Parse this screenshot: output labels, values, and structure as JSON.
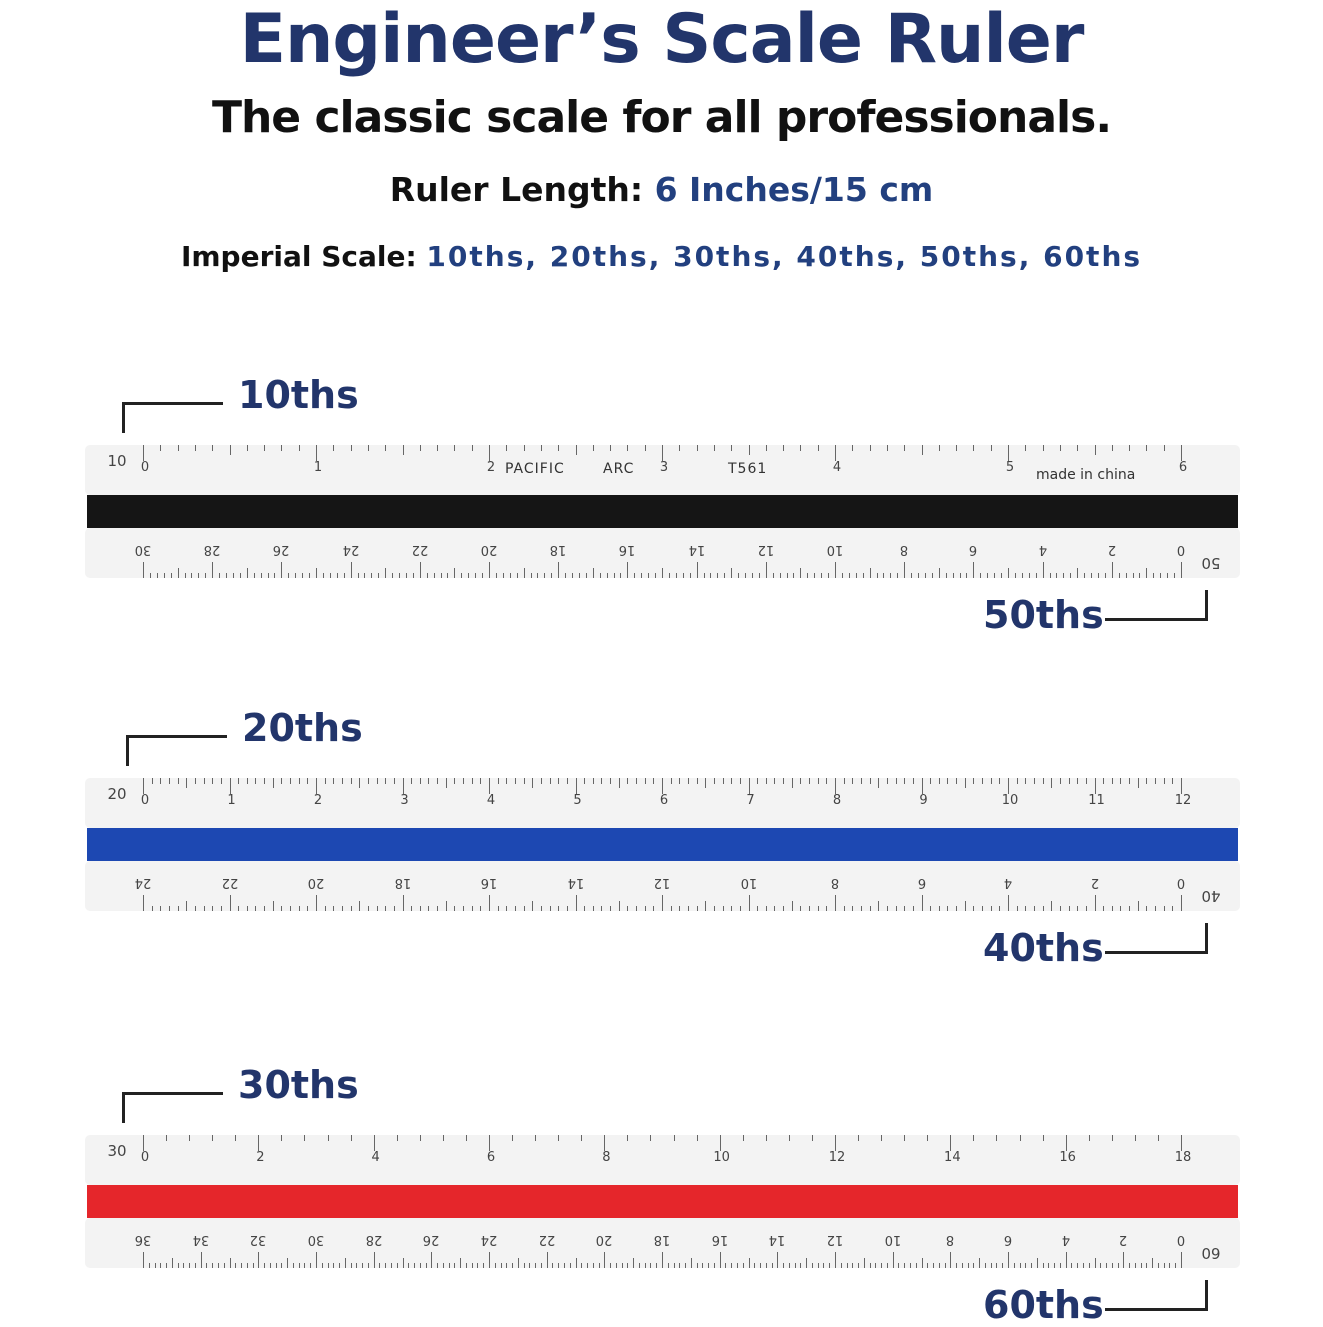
{
  "header": {
    "title": "Engineer’s Scale Ruler",
    "subtitle": "The classic scale for all professionals.",
    "length_label": "Ruler Length:",
    "length_value": "6 Inches/15 cm",
    "imperial_label": "Imperial Scale:",
    "imperial_value": "10ths, 20ths, 30ths, 40ths, 50ths, 60ths"
  },
  "rulers": [
    {
      "top_scale_label": "10ths",
      "bottom_scale_label": "50ths",
      "top_id": "10",
      "bottom_id": "50",
      "stripe_color": "#151515",
      "top_numbers": [
        "0",
        "1",
        "2",
        "3",
        "4",
        "5",
        "6"
      ],
      "bottom_numbers": [
        "30",
        "28",
        "26",
        "24",
        "22",
        "20",
        "18",
        "16",
        "14",
        "12",
        "10",
        "8",
        "6",
        "4",
        "2",
        "0"
      ],
      "imprints": [
        "PACIFIC",
        "ARC",
        "T561",
        "made in china"
      ]
    },
    {
      "top_scale_label": "20ths",
      "bottom_scale_label": "40ths",
      "top_id": "20",
      "bottom_id": "40",
      "stripe_color": "#1d48b2",
      "top_numbers": [
        "0",
        "1",
        "2",
        "3",
        "4",
        "5",
        "6",
        "7",
        "8",
        "9",
        "10",
        "11",
        "12"
      ],
      "bottom_numbers": [
        "24",
        "22",
        "20",
        "18",
        "16",
        "14",
        "12",
        "10",
        "8",
        "6",
        "4",
        "2",
        "0"
      ],
      "imprints": []
    },
    {
      "top_scale_label": "30ths",
      "bottom_scale_label": "60ths",
      "top_id": "30",
      "bottom_id": "60",
      "stripe_color": "#e5262b",
      "top_numbers": [
        "0",
        "2",
        "4",
        "6",
        "8",
        "10",
        "12",
        "14",
        "16",
        "18"
      ],
      "bottom_numbers": [
        "36",
        "34",
        "32",
        "30",
        "28",
        "26",
        "24",
        "22",
        "20",
        "18",
        "16",
        "14",
        "12",
        "10",
        "8",
        "6",
        "4",
        "2",
        "0"
      ],
      "imprints": []
    }
  ]
}
